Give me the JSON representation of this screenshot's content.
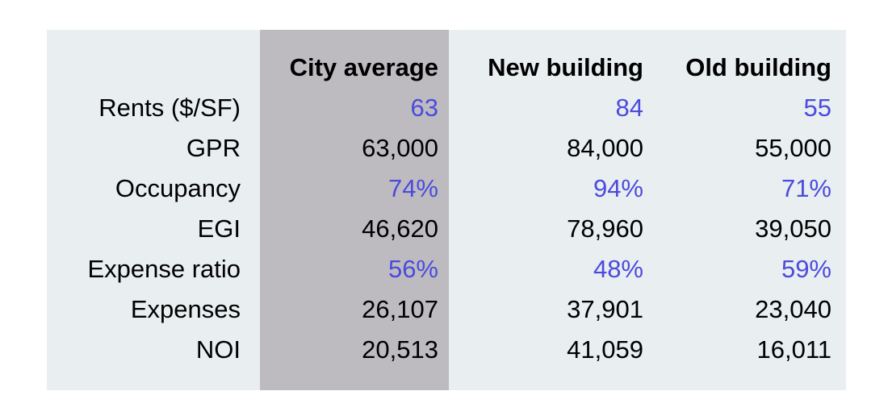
{
  "table": {
    "columns": [
      "City average",
      "New building",
      "Old building"
    ],
    "rows": [
      {
        "label": "Rents ($/SF)",
        "cells": [
          "63",
          "84",
          "55"
        ],
        "color": "#4b4bdc"
      },
      {
        "label": "GPR",
        "cells": [
          "63,000",
          "84,000",
          "55,000"
        ],
        "color": "#000000"
      },
      {
        "label": "Occupancy",
        "cells": [
          "74%",
          "94%",
          "71%"
        ],
        "color": "#4b4bdc"
      },
      {
        "label": "EGI",
        "cells": [
          "46,620",
          "78,960",
          "39,050"
        ],
        "color": "#000000"
      },
      {
        "label": "Expense ratio",
        "cells": [
          "56%",
          "48%",
          "59%"
        ],
        "color": "#4b4bdc"
      },
      {
        "label": "Expenses",
        "cells": [
          "26,107",
          "37,901",
          "23,040"
        ],
        "color": "#000000"
      },
      {
        "label": "NOI",
        "cells": [
          "20,513",
          "41,059",
          "16,011"
        ],
        "color": "#000000"
      }
    ]
  }
}
